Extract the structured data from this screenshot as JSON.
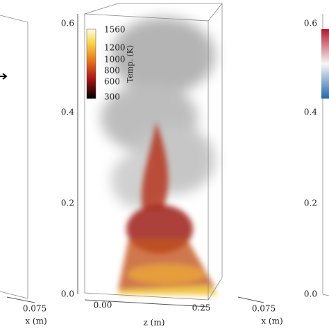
{
  "panels": [
    {
      "x_ticks": [
        "0.075"
      ],
      "x_label": "x (m)"
    },
    {
      "y_ticks": [
        "0.6",
        "0.4",
        "0.2",
        "0.0"
      ],
      "z_ticks": [
        "0.00",
        "0.25"
      ],
      "z_label": "z (m)",
      "colorbar": {
        "label": "Temp. (K)",
        "ticks": [
          "1560",
          "1200",
          "1000",
          "800",
          "600",
          "300"
        ]
      }
    },
    {
      "y_ticks": [
        "0.6",
        "0.4",
        "0.2",
        "0.0"
      ],
      "x_ticks": [
        "0.075"
      ],
      "x_label": "x (m)"
    }
  ]
}
